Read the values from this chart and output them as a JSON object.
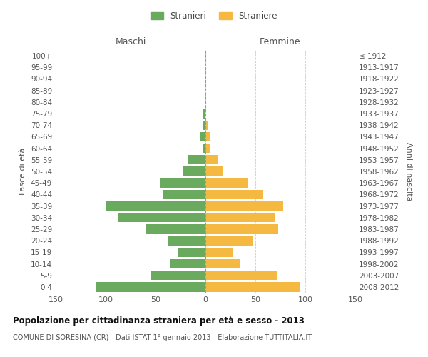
{
  "age_groups": [
    "0-4",
    "5-9",
    "10-14",
    "15-19",
    "20-24",
    "25-29",
    "30-34",
    "35-39",
    "40-44",
    "45-49",
    "50-54",
    "55-59",
    "60-64",
    "65-69",
    "70-74",
    "75-79",
    "80-84",
    "85-89",
    "90-94",
    "95-99",
    "100+"
  ],
  "birth_years": [
    "2008-2012",
    "2003-2007",
    "1998-2002",
    "1993-1997",
    "1988-1992",
    "1983-1987",
    "1978-1982",
    "1973-1977",
    "1968-1972",
    "1963-1967",
    "1958-1962",
    "1953-1957",
    "1948-1952",
    "1943-1947",
    "1938-1942",
    "1933-1937",
    "1928-1932",
    "1923-1927",
    "1918-1922",
    "1913-1917",
    "≤ 1912"
  ],
  "maschi": [
    110,
    55,
    35,
    28,
    38,
    60,
    88,
    100,
    42,
    45,
    22,
    18,
    3,
    5,
    3,
    2,
    0,
    0,
    0,
    0,
    0
  ],
  "femmine": [
    95,
    72,
    35,
    28,
    48,
    73,
    70,
    78,
    58,
    43,
    18,
    12,
    5,
    5,
    3,
    0,
    0,
    0,
    0,
    0,
    0
  ],
  "maschi_color": "#6aaa5e",
  "femmine_color": "#f5b942",
  "dashed_line_color": "#999999",
  "grid_color": "#cccccc",
  "background_color": "#ffffff",
  "title": "Popolazione per cittadinanza straniera per età e sesso - 2013",
  "subtitle": "COMUNE DI SORESINA (CR) - Dati ISTAT 1° gennaio 2013 - Elaborazione TUTTITALIA.IT",
  "xlabel_left": "Maschi",
  "xlabel_right": "Femmine",
  "ylabel_left": "Fasce di età",
  "ylabel_right": "Anni di nascita",
  "legend_maschi": "Stranieri",
  "legend_femmine": "Straniere",
  "xlim": 150
}
